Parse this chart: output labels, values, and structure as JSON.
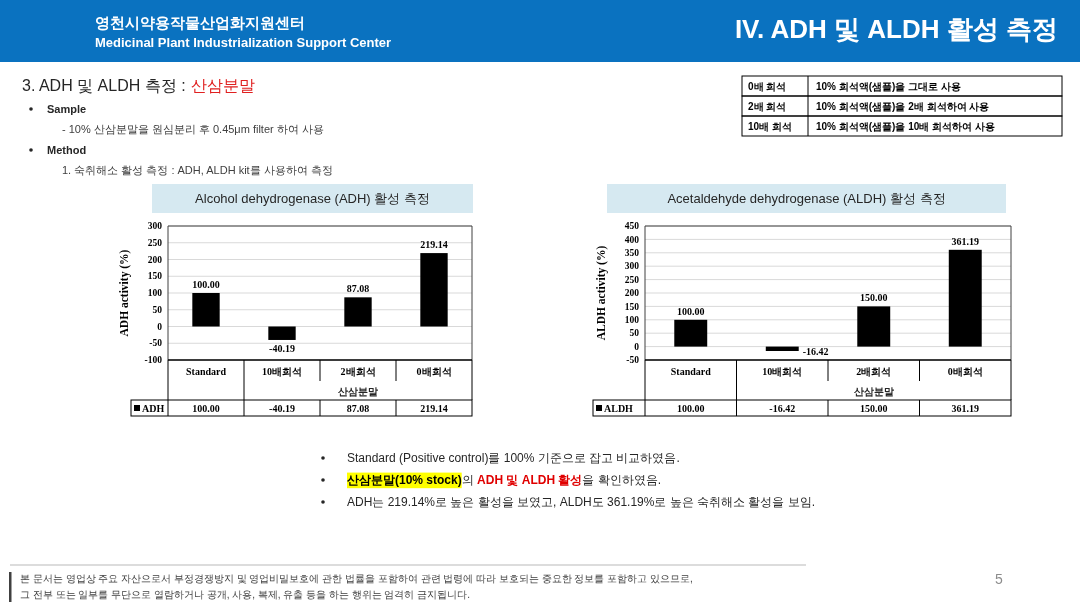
{
  "chart_data": [
    {
      "type": "other",
      "title": "IV. ADH 및 ALDH 활성 측정",
      "annotations": [
        "영천시약용작물산업화지원센터",
        "Medicinal Plant Industrialization Support Center",
        "3. ADH 및 ALDH 측정 :",
        "산삼분말",
        "Sample",
        "- 10% 산삼분말을 원심분리 후 0.45μm filter 하여 사용",
        "Method",
        "1. 숙취해소 활성 측정 : ADH, ALDH kit를 사용하여 측정",
        "0배 희석",
        "10% 희석액(샘플)을 그대로 사용",
        "2배 희석",
        "10% 희석액(샘플)을 2배 희석하여 사용",
        "10배 희석",
        "10% 희석액(샘플)을 10배 희석하여 사용"
      ]
    },
    {
      "type": "bar",
      "title": "Alcohol dehydrogenase (ADH) 활성 측정",
      "ylabel": "ADH activity (%)",
      "xlabel": "산삼분말",
      "categories": [
        "Standard",
        "10배희석",
        "2배희석",
        "0배희석"
      ],
      "series": [
        {
          "name": "ADH",
          "color": "#000000",
          "values": [
            100,
            -40.19,
            87.08,
            219.14
          ],
          "value_labels": [
            "100.00",
            "-40.19",
            "87.08",
            "219.14"
          ]
        }
      ],
      "ylim": [
        -100,
        300
      ],
      "yticks": [
        -100,
        -50,
        0,
        50,
        100,
        150,
        200,
        250,
        300
      ],
      "grid": "y",
      "legend": "bottom"
    },
    {
      "type": "bar",
      "title": "Acetaldehyde dehydrogenase (ALDH) 활성 측정",
      "ylabel": "ALDH activity (%)",
      "xlabel": "산삼분말",
      "categories": [
        "Standard",
        "10배희석",
        "2배희석",
        "0배희석"
      ],
      "series": [
        {
          "name": "ALDH",
          "color": "#000000",
          "values": [
            100,
            -16.42,
            150,
            361.19
          ],
          "value_labels": [
            "100.00",
            "-16.42",
            "150.00",
            "361.19"
          ]
        }
      ],
      "ylim": [
        -50,
        450
      ],
      "yticks": [
        -50,
        0,
        50,
        100,
        150,
        200,
        250,
        300,
        350,
        400,
        450
      ],
      "grid": "y",
      "legend": "bottom"
    },
    {
      "type": "other",
      "annotations": [
        "Standard (Positive control)를 100% 기준으로 잡고 비교하였음.",
        "**산삼분말(10% stock)**의 **ADH 및 ALDH 활성**을 확인하였음.",
        "ADH는 219.14%로 높은 활성을 보였고, ALDH도 361.19%로 높은 숙취해소 활성을 보임.",
        "본 문서는 영업상 주요 자산으로서 부정경쟁방지 및 영업비밀보호에 관한 법률을 포함하여 관련 법령에 따라 보호되는 중요한 정보를 포함하고 있으므로,",
        "그 전부 또는 일부를 무단으로 열람하거나 공개, 사용, 복제, 유출 등을 하는 행위는 엄격히 금지됩니다.",
        "5"
      ]
    }
  ]
}
